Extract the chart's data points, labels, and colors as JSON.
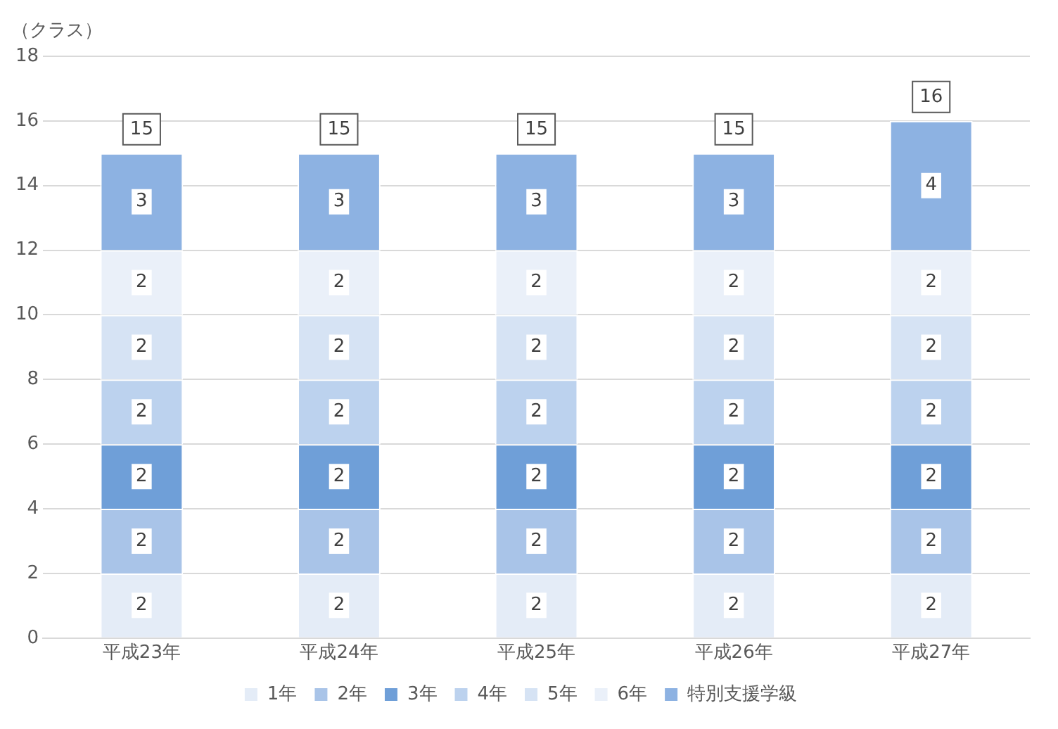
{
  "chart_data": {
    "type": "bar",
    "stacked": true,
    "ylabel": "（クラス）",
    "categories": [
      "平成23年",
      "平成24年",
      "平成25年",
      "平成26年",
      "平成27年"
    ],
    "series": [
      {
        "name": "1年",
        "color": "#e4ecf7",
        "values": [
          2,
          2,
          2,
          2,
          2
        ]
      },
      {
        "name": "2年",
        "color": "#a9c4e8",
        "values": [
          2,
          2,
          2,
          2,
          2
        ]
      },
      {
        "name": "3年",
        "color": "#6f9fd8",
        "values": [
          2,
          2,
          2,
          2,
          2
        ]
      },
      {
        "name": "4年",
        "color": "#bcd2ee",
        "values": [
          2,
          2,
          2,
          2,
          2
        ]
      },
      {
        "name": "5年",
        "color": "#d6e3f4",
        "values": [
          2,
          2,
          2,
          2,
          2
        ]
      },
      {
        "name": "6年",
        "color": "#eaf0f9",
        "values": [
          2,
          2,
          2,
          2,
          2
        ]
      },
      {
        "name": "特別支援学級",
        "color": "#8db2e2",
        "values": [
          3,
          3,
          3,
          3,
          4
        ]
      }
    ],
    "totals": [
      "15",
      "15",
      "15",
      "15",
      "16"
    ],
    "data_labels": true,
    "ylim": [
      0,
      18
    ],
    "yticks": [
      0,
      2,
      4,
      6,
      8,
      10,
      12,
      14,
      16,
      18
    ],
    "grid": "y",
    "legend": "bottom"
  }
}
